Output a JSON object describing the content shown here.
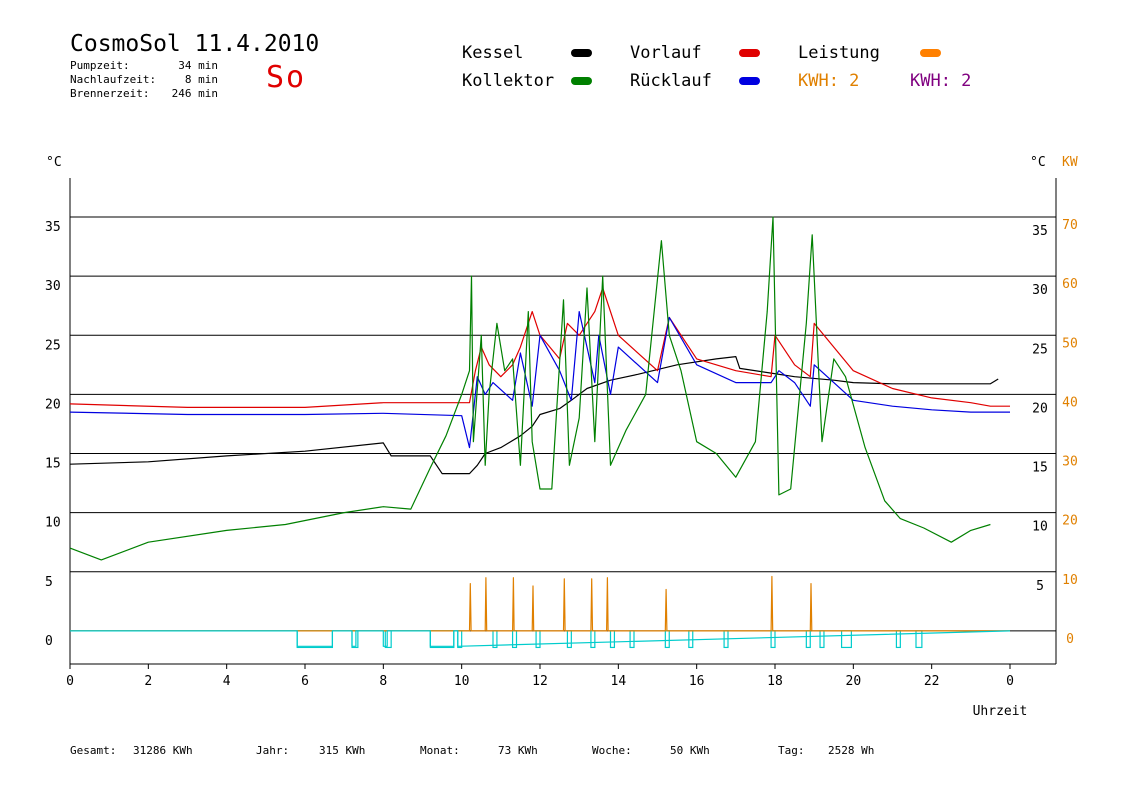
{
  "header": {
    "title": "CosmoSol 11.4.2010",
    "day": "So",
    "stats": [
      {
        "label": "Pumpzeit:",
        "value": "34 min"
      },
      {
        "label": "Nachlaufzeit:",
        "value": "8 min"
      },
      {
        "label": "Brennerzeit:",
        "value": "246 min"
      }
    ]
  },
  "legend": [
    {
      "label": "Kessel",
      "color": "#000000"
    },
    {
      "label": "Vorlauf",
      "color": "#e00000"
    },
    {
      "label": "Leistung",
      "color": "#ff8000"
    },
    {
      "label": "Kollektor",
      "color": "#008000"
    },
    {
      "label": "Rücklauf",
      "color": "#0000e0"
    }
  ],
  "kwh": [
    {
      "label": "KWH: 2",
      "color": "#e08000"
    },
    {
      "label": "KWH: 2",
      "color": "#800080"
    }
  ],
  "footer": [
    {
      "label": "Gesamt:",
      "value": "31286 KWh"
    },
    {
      "label": "Jahr:",
      "value": "315 KWh"
    },
    {
      "label": "Monat:",
      "value": "73 KWh"
    },
    {
      "label": "Woche:",
      "value": "50 KWh"
    },
    {
      "label": "Tag:",
      "value": "2528 Wh"
    }
  ],
  "chart_data": {
    "type": "line",
    "xlabel": "Uhrzeit",
    "ylabel_left": "°C",
    "ylabel_right": [
      "°C",
      "KW"
    ],
    "xlim": [
      0,
      24
    ],
    "ylim": [
      -2.8,
      38.3
    ],
    "xticks": [
      "0",
      "2",
      "4",
      "6",
      "8",
      "10",
      "12",
      "14",
      "16",
      "18",
      "20",
      "22",
      "0"
    ],
    "yticks_left": [
      0,
      5,
      10,
      15,
      20,
      25,
      30,
      35
    ],
    "yticks_right_c": [
      5,
      10,
      15,
      20,
      25,
      30,
      35
    ],
    "yticks_right_kw": [
      0,
      10,
      20,
      30,
      40,
      50,
      60,
      70
    ],
    "grid": true,
    "series": [
      {
        "name": "Kessel",
        "color": "#000000",
        "x": [
          0,
          2,
          4,
          6,
          8,
          8.2,
          9.2,
          9.5,
          10.2,
          10.4,
          10.6,
          11,
          11.5,
          11.8,
          12,
          12.5,
          12.8,
          13.2,
          13.8,
          14.5,
          15.5,
          16.5,
          17,
          17.1,
          17.9,
          18.5,
          19.5,
          20,
          21,
          22,
          23.5,
          23.7
        ],
        "y": [
          14.1,
          14.3,
          14.8,
          15.2,
          15.9,
          14.8,
          14.8,
          13.3,
          13.3,
          14,
          15,
          15.5,
          16.5,
          17.3,
          18.3,
          18.8,
          19.5,
          20.5,
          21.2,
          21.7,
          22.5,
          23,
          23.2,
          22.2,
          21.8,
          21.5,
          21.2,
          21,
          20.9,
          20.9,
          20.9,
          21.3
        ]
      },
      {
        "name": "Vorlauf",
        "color": "#e00000",
        "x": [
          0,
          3,
          6,
          8,
          10.2,
          10.35,
          10.5,
          10.7,
          11,
          11.3,
          11.5,
          11.8,
          12,
          12.5,
          12.7,
          13,
          13.4,
          13.6,
          14,
          15,
          15.3,
          16,
          17,
          17.9,
          18,
          18.5,
          18.9,
          19,
          20,
          21,
          22,
          23,
          23.5,
          24
        ],
        "y": [
          19.2,
          18.9,
          18.9,
          19.3,
          19.3,
          22,
          24,
          22.5,
          21.5,
          22.5,
          24,
          27,
          25,
          23,
          26,
          25,
          27,
          29,
          25,
          22,
          26.5,
          23,
          22,
          21.5,
          25,
          22.5,
          21.5,
          26,
          22,
          20.5,
          19.7,
          19.3,
          19,
          19
        ]
      },
      {
        "name": "Rücklauf",
        "color": "#0000e0",
        "x": [
          0,
          3,
          6,
          8,
          10,
          10.2,
          10.4,
          10.6,
          10.8,
          11.3,
          11.5,
          11.8,
          12,
          12.5,
          12.8,
          13,
          13.4,
          13.5,
          13.8,
          14,
          15,
          15.3,
          16,
          17,
          17.9,
          18.1,
          18.5,
          18.9,
          19,
          19.5,
          20,
          21,
          22,
          23,
          24
        ],
        "y": [
          18.5,
          18.3,
          18.3,
          18.4,
          18.2,
          15.5,
          21.5,
          20,
          21,
          19.5,
          23.5,
          19,
          25,
          22,
          19.5,
          27,
          21,
          25,
          20,
          24,
          21,
          26.5,
          22.5,
          21,
          21,
          22,
          21,
          19,
          22.5,
          21,
          19.5,
          19,
          18.7,
          18.5,
          18.5
        ]
      },
      {
        "name": "Kollektor",
        "color": "#008000",
        "x": [
          0,
          0.8,
          2,
          4,
          5.5,
          7,
          8,
          8.7,
          9.2,
          9.6,
          10,
          10.2,
          10.25,
          10.3,
          10.5,
          10.6,
          10.7,
          10.9,
          11.1,
          11.3,
          11.5,
          11.7,
          11.8,
          12,
          12.3,
          12.6,
          12.75,
          13,
          13.2,
          13.4,
          13.6,
          13.8,
          14.2,
          14.7,
          15.1,
          15.3,
          15.6,
          16,
          16.5,
          17,
          17.5,
          17.8,
          17.95,
          18.1,
          18.4,
          18.8,
          18.95,
          19.2,
          19.5,
          19.8,
          20.3,
          20.8,
          21.2,
          21.8,
          22.5,
          23,
          23.5
        ],
        "y": [
          7,
          6,
          7.5,
          8.5,
          9,
          10,
          10.5,
          10.3,
          13.8,
          16.5,
          20,
          22,
          30,
          16,
          25,
          14,
          20,
          26,
          22,
          23,
          14,
          27,
          16,
          12,
          12,
          28,
          14,
          18,
          29,
          16,
          30,
          14,
          17,
          20,
          33,
          25,
          22,
          16,
          15,
          13,
          16,
          27,
          35,
          11.5,
          12,
          26,
          33.5,
          16,
          23,
          21.5,
          15.5,
          11,
          9.5,
          8.7,
          7.5,
          8.5,
          9
        ]
      },
      {
        "name": "Leistung",
        "color": "#e08000",
        "x": [
          0,
          10.2,
          10.22,
          10.24,
          10.6,
          10.62,
          10.64,
          11.3,
          11.32,
          11.34,
          11.8,
          11.82,
          11.84,
          12.6,
          12.62,
          12.64,
          13.3,
          13.32,
          13.34,
          13.7,
          13.72,
          13.74,
          15.2,
          15.22,
          15.24,
          17.9,
          17.92,
          17.94,
          18.9,
          18.92,
          18.94,
          24
        ],
        "y": [
          0,
          0,
          4,
          0,
          0,
          4.5,
          0,
          0,
          4.5,
          0,
          0,
          3.8,
          0,
          0,
          4.4,
          0,
          0,
          4.4,
          0,
          0,
          4.5,
          0,
          0,
          3.5,
          0,
          0,
          4.6,
          0,
          0,
          4.0,
          0,
          0
        ]
      },
      {
        "name": "Pumpe",
        "color": "#00cccc",
        "x": [
          0,
          5.8,
          5.8,
          6.7,
          6.7,
          7.2,
          7.2,
          7.3,
          7.3,
          8,
          8,
          8.1,
          8.1,
          9.2,
          9.2,
          9.8,
          9.8,
          9.9,
          9.9,
          24
        ],
        "y": [
          0,
          0,
          -1.3,
          -1.3,
          0,
          0,
          -1.3,
          -1.3,
          0,
          0,
          -1.3,
          -1.3,
          0,
          0,
          -1.3,
          -1.3,
          0,
          0,
          -1.3,
          0
        ]
      }
    ],
    "pump_blocks": [
      [
        5.8,
        6.7
      ],
      [
        7.2,
        7.35
      ],
      [
        8.05,
        8.2
      ],
      [
        9.2,
        9.8
      ],
      [
        9.9,
        10
      ],
      [
        10.8,
        10.9
      ],
      [
        11.3,
        11.4
      ],
      [
        11.9,
        12
      ],
      [
        12.7,
        12.8
      ],
      [
        13.3,
        13.4
      ],
      [
        13.8,
        13.9
      ],
      [
        14.3,
        14.4
      ],
      [
        15.2,
        15.3
      ],
      [
        15.8,
        15.9
      ],
      [
        16.7,
        16.8
      ],
      [
        17.9,
        18
      ],
      [
        18.8,
        18.9
      ],
      [
        19.15,
        19.25
      ],
      [
        19.7,
        19.95
      ],
      [
        21.1,
        21.2
      ],
      [
        21.6,
        21.75
      ]
    ]
  }
}
